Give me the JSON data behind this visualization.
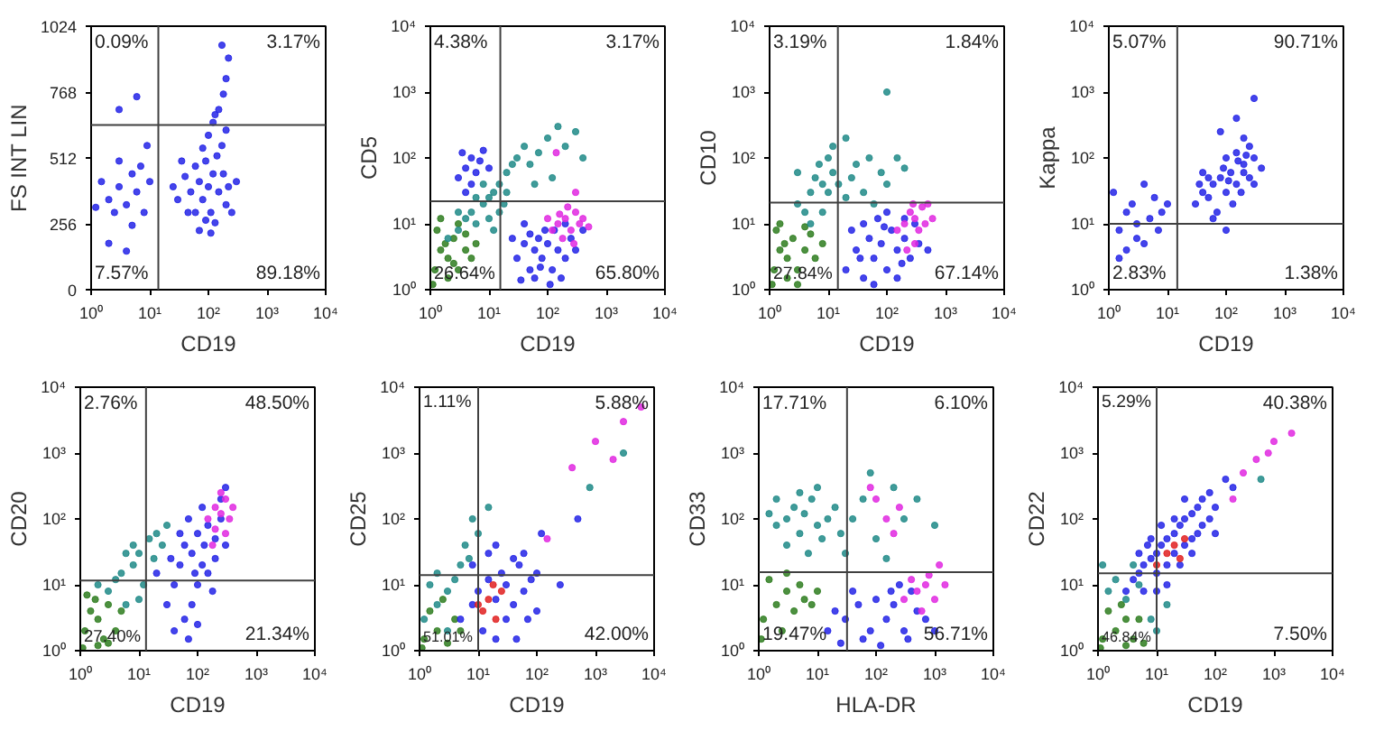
{
  "chart_data": [
    {
      "type": "scatter",
      "xlabel": "CD19",
      "ylabel": "FS INT LIN",
      "log": "x",
      "marker": "circle",
      "xlim": [
        1,
        10000
      ],
      "ylim": [
        0,
        1024
      ],
      "xticks": [
        {
          "value": 1,
          "label": "10⁰"
        },
        {
          "value": 10,
          "label": "10¹"
        },
        {
          "value": 100,
          "label": "10²"
        },
        {
          "value": 1000,
          "label": "10³"
        },
        {
          "value": 10000,
          "label": "10⁴"
        }
      ],
      "yticks": [
        0,
        256,
        512,
        768,
        1024
      ],
      "ref_lines": [
        {
          "axis": "x",
          "value": 14,
          "color": "#404040"
        },
        {
          "axis": "y",
          "value": 640,
          "color": "#404040"
        }
      ],
      "annotations": [
        "0.09%",
        "3.17%",
        "7.57%",
        "89.18%"
      ],
      "series": [
        {
          "color": "#2323e6",
          "x": [
            60,
            80,
            100,
            120,
            90,
            70,
            150,
            200,
            50,
            40,
            30,
            110,
            130,
            180,
            220,
            60,
            80,
            140,
            250,
            90,
            45,
            35,
            170,
            100,
            200,
            120,
            150,
            180,
            200,
            220,
            170,
            130,
            25,
            300,
            70,
            110,
            2,
            3,
            4,
            5,
            1.5,
            2.5,
            6,
            8,
            3,
            7,
            1.2,
            10,
            5,
            2,
            4,
            9,
            3,
            6
          ],
          "values": [
            300,
            350,
            400,
            450,
            500,
            420,
            380,
            330,
            380,
            440,
            350,
            300,
            260,
            450,
            400,
            480,
            550,
            520,
            300,
            270,
            300,
            500,
            560,
            600,
            620,
            650,
            700,
            760,
            820,
            900,
            950,
            680,
            400,
            420,
            230,
            220,
            350,
            400,
            330,
            450,
            420,
            300,
            380,
            300,
            500,
            480,
            320,
            420,
            250,
            180,
            150,
            560,
            700,
            750
          ]
        }
      ]
    },
    {
      "type": "scatter",
      "xlabel": "CD19",
      "ylabel": "CD5",
      "log": "xy",
      "marker": "circle",
      "xlim": [
        1,
        10000
      ],
      "ylim": [
        1,
        10000
      ],
      "xticks": [
        {
          "value": 1,
          "label": "10⁰"
        },
        {
          "value": 10,
          "label": "10¹"
        },
        {
          "value": 100,
          "label": "10²"
        },
        {
          "value": 1000,
          "label": "10³"
        },
        {
          "value": 10000,
          "label": "10⁴"
        }
      ],
      "yticks": [
        {
          "value": 1,
          "label": "10⁰"
        },
        {
          "value": 10,
          "label": "10¹"
        },
        {
          "value": 100,
          "label": "10²"
        },
        {
          "value": 1000,
          "label": "10³"
        },
        {
          "value": 10000,
          "label": "10⁴"
        }
      ],
      "ref_lines": [
        {
          "axis": "x",
          "value": 15.6,
          "color": "#404040"
        },
        {
          "axis": "y",
          "value": 22,
          "color": "#404040"
        }
      ],
      "annotations": [
        "4.38%",
        "3.17%",
        "26.64%",
        "65.80%"
      ],
      "series": [
        {
          "color": "#2e7d1e",
          "x": [
            1.2,
            1.5,
            2,
            2.5,
            3,
            1.3,
            4,
            2,
            3,
            1.8,
            5,
            1.1,
            2.5,
            4,
            1.5,
            6
          ],
          "values": [
            2,
            4,
            3,
            6,
            2,
            8,
            4,
            1.5,
            10,
            5,
            3,
            1.2,
            2.5,
            7,
            12,
            5
          ]
        },
        {
          "color": "#1f8a87",
          "x": [
            3,
            4,
            5,
            6,
            8,
            10,
            12,
            15,
            20,
            25,
            8,
            6,
            10,
            15,
            20,
            30,
            40,
            50,
            70,
            100,
            150,
            200,
            300,
            400,
            120,
            60,
            2,
            3,
            12,
            18
          ],
          "values": [
            8,
            12,
            15,
            10,
            20,
            25,
            30,
            40,
            60,
            80,
            40,
            25,
            12,
            15,
            30,
            100,
            150,
            80,
            120,
            200,
            300,
            150,
            250,
            100,
            50,
            40,
            6,
            15,
            8,
            20
          ]
        },
        {
          "color": "#2323e6",
          "x": [
            30,
            40,
            50,
            60,
            70,
            80,
            100,
            120,
            150,
            200,
            250,
            60,
            90,
            40,
            130,
            170,
            300,
            400,
            25,
            110,
            75,
            50,
            200,
            35,
            3,
            4,
            5,
            6,
            7,
            5,
            8,
            3.5,
            10,
            4
          ],
          "values": [
            3,
            5,
            2,
            4,
            6,
            3,
            5,
            2,
            4,
            3,
            6,
            1.5,
            8,
            10,
            8,
            1.5,
            4,
            8,
            6,
            1.2,
            2.2,
            7,
            10,
            1.4,
            50,
            70,
            100,
            60,
            90,
            40,
            130,
            120,
            70,
            30
          ]
        },
        {
          "color": "#e028e0",
          "x": [
            120,
            150,
            200,
            250,
            300,
            350,
            180,
            220,
            400,
            280,
            160,
            500,
            100,
            140,
            300
          ],
          "values": [
            8,
            10,
            12,
            8,
            15,
            10,
            6,
            18,
            12,
            5,
            14,
            9,
            12,
            120,
            30
          ]
        }
      ]
    },
    {
      "type": "scatter",
      "xlabel": "CD19",
      "ylabel": "CD10",
      "log": "xy",
      "marker": "circle",
      "xlim": [
        1,
        10000
      ],
      "ylim": [
        1,
        10000
      ],
      "xticks": [
        {
          "value": 1,
          "label": "10⁰"
        },
        {
          "value": 10,
          "label": "10¹"
        },
        {
          "value": 100,
          "label": "10²"
        },
        {
          "value": 1000,
          "label": "10³"
        },
        {
          "value": 10000,
          "label": "10⁴"
        }
      ],
      "yticks": [
        {
          "value": 1,
          "label": "10⁰"
        },
        {
          "value": 10,
          "label": "10¹"
        },
        {
          "value": 100,
          "label": "10²"
        },
        {
          "value": 1000,
          "label": "10³"
        },
        {
          "value": 10000,
          "label": "10⁴"
        }
      ],
      "ref_lines": [
        {
          "axis": "x",
          "value": 14.6,
          "color": "#404040"
        },
        {
          "axis": "y",
          "value": 21,
          "color": "#404040"
        }
      ],
      "annotations": [
        "3.19%",
        "1.84%",
        "27.84%",
        "67.14%"
      ],
      "series": [
        {
          "color": "#2e7d1e",
          "x": [
            1.2,
            1.5,
            2,
            2.5,
            3,
            1.3,
            4,
            2,
            5,
            1.8,
            6,
            1.1,
            3,
            8,
            1.5,
            4
          ],
          "values": [
            2,
            4,
            3,
            6,
            2,
            8,
            4,
            1.5,
            7,
            5,
            3,
            1.2,
            1.2,
            5,
            10,
            9
          ]
        },
        {
          "color": "#1f8a87",
          "x": [
            3,
            5,
            6,
            8,
            10,
            7,
            10,
            12,
            15,
            4,
            20,
            25,
            30,
            50,
            80,
            100,
            150,
            200,
            5,
            8,
            12,
            3,
            40,
            60,
            20,
            100
          ],
          "values": [
            20,
            30,
            50,
            40,
            30,
            80,
            100,
            60,
            40,
            15,
            25,
            50,
            80,
            100,
            60,
            40,
            100,
            70,
            10,
            15,
            150,
            60,
            30,
            20,
            200,
            1000
          ]
        },
        {
          "color": "#2323e6",
          "x": [
            20,
            30,
            40,
            50,
            60,
            80,
            100,
            120,
            150,
            200,
            250,
            300,
            40,
            70,
            100,
            150,
            200,
            25,
            60,
            90,
            350,
            500,
            180,
            35
          ],
          "values": [
            2,
            4,
            1.5,
            6,
            3,
            5,
            2,
            8,
            4,
            6,
            3,
            10,
            10,
            12,
            15,
            1.5,
            12,
            8,
            1.2,
            9,
            5,
            4,
            2.5,
            3
          ]
        },
        {
          "color": "#e028e0",
          "x": [
            150,
            200,
            250,
            300,
            350,
            400,
            450,
            300,
            500,
            220,
            600,
            280
          ],
          "values": [
            8,
            10,
            15,
            12,
            8,
            18,
            10,
            5,
            20,
            4,
            12,
            20
          ]
        }
      ]
    },
    {
      "type": "scatter",
      "xlabel": "CD19",
      "ylabel": "Kappa",
      "log": "xy",
      "marker": "circle",
      "xlim": [
        1,
        10000
      ],
      "ylim": [
        1,
        10000
      ],
      "xticks": [
        {
          "value": 1,
          "label": "10⁰"
        },
        {
          "value": 10,
          "label": "10¹"
        },
        {
          "value": 100,
          "label": "10²"
        },
        {
          "value": 1000,
          "label": "10³"
        },
        {
          "value": 10000,
          "label": "10⁴"
        }
      ],
      "yticks": [
        {
          "value": 1,
          "label": "10⁰"
        },
        {
          "value": 10,
          "label": "10¹"
        },
        {
          "value": 100,
          "label": "10²"
        },
        {
          "value": 1000,
          "label": "10³"
        },
        {
          "value": 10000,
          "label": "10⁴"
        }
      ],
      "ref_lines": [
        {
          "axis": "x",
          "value": 14.7,
          "color": "#404040"
        },
        {
          "axis": "y",
          "value": 10,
          "color": "#404040"
        }
      ],
      "annotations": [
        "5.07%",
        "90.71%",
        "2.83%",
        "1.38%"
      ],
      "series": [
        {
          "color": "#2323e6",
          "x": [
            30,
            40,
            50,
            60,
            80,
            100,
            120,
            150,
            200,
            250,
            300,
            100,
            150,
            200,
            70,
            50,
            90,
            130,
            180,
            250,
            40,
            300,
            60,
            110,
            160,
            220,
            35,
            400,
            100,
            200,
            300,
            150,
            80,
            1.5,
            2,
            3,
            4,
            5,
            2.5,
            1.2,
            3,
            6,
            8,
            2,
            4,
            10,
            7,
            1.5
          ],
          "values": [
            20,
            30,
            25,
            40,
            50,
            30,
            60,
            40,
            80,
            50,
            100,
            100,
            120,
            60,
            15,
            50,
            70,
            20,
            30,
            150,
            60,
            40,
            12,
            45,
            90,
            110,
            40,
            70,
            8,
            200,
            800,
            400,
            250,
            8,
            15,
            10,
            5,
            12,
            20,
            30,
            6,
            25,
            15,
            4,
            40,
            20,
            8,
            3
          ]
        }
      ]
    },
    {
      "type": "scatter",
      "xlabel": "CD19",
      "ylabel": "CD20",
      "log": "xy",
      "marker": "circle",
      "xlim": [
        1,
        10000
      ],
      "ylim": [
        1,
        10000
      ],
      "xticks": [
        {
          "value": 1,
          "label": "10⁰"
        },
        {
          "value": 10,
          "label": "10¹"
        },
        {
          "value": 100,
          "label": "10²"
        },
        {
          "value": 1000,
          "label": "10³"
        },
        {
          "value": 10000,
          "label": "10⁴"
        }
      ],
      "yticks": [
        {
          "value": 1,
          "label": "10⁰"
        },
        {
          "value": 10,
          "label": "10¹"
        },
        {
          "value": 100,
          "label": "10²"
        },
        {
          "value": 1000,
          "label": "10³"
        },
        {
          "value": 10000,
          "label": "10⁴"
        }
      ],
      "ref_lines": [
        {
          "axis": "x",
          "value": 13.2,
          "color": "#404040"
        },
        {
          "axis": "y",
          "value": 11.6,
          "color": "#404040"
        }
      ],
      "annotations": [
        "2.76%",
        "48.50%",
        "27.40%",
        "21.34%"
      ],
      "series": [
        {
          "color": "#2e7d1e",
          "x": [
            1.2,
            1.5,
            2,
            2.5,
            3,
            1.3,
            4,
            2,
            5,
            1.8,
            1.1,
            3
          ],
          "values": [
            2,
            4,
            3,
            1.5,
            5,
            7,
            2,
            1.2,
            4,
            6,
            1.1,
            1.3
          ]
        },
        {
          "color": "#1f8a87",
          "x": [
            3,
            5,
            8,
            10,
            15,
            20,
            6,
            12,
            25,
            4,
            8,
            30,
            10,
            2,
            18,
            6
          ],
          "values": [
            8,
            15,
            20,
            30,
            50,
            60,
            5,
            10,
            40,
            12,
            40,
            80,
            6,
            10,
            25,
            30
          ]
        },
        {
          "color": "#2323e6",
          "x": [
            30,
            40,
            50,
            60,
            80,
            100,
            120,
            150,
            200,
            250,
            100,
            80,
            60,
            150,
            200,
            50,
            70,
            120,
            40,
            100,
            180,
            300,
            250,
            90,
            130,
            35,
            300,
            20,
            70
          ],
          "values": [
            5,
            10,
            20,
            40,
            30,
            60,
            20,
            80,
            50,
            100,
            10,
            5,
            3,
            15,
            25,
            60,
            100,
            150,
            2,
            2.5,
            8,
            40,
            200,
            15,
            40,
            25,
            300,
            15,
            1.5
          ]
        },
        {
          "color": "#e028e0",
          "x": [
            150,
            200,
            250,
            300,
            200,
            350,
            180,
            300,
            400,
            250
          ],
          "values": [
            100,
            150,
            120,
            200,
            70,
            100,
            40,
            60,
            150,
            250
          ]
        }
      ]
    },
    {
      "type": "scatter",
      "xlabel": "CD19",
      "ylabel": "CD25",
      "log": "xy",
      "marker": "circle",
      "xlim": [
        1,
        10000
      ],
      "ylim": [
        1,
        10000
      ],
      "xticks": [
        {
          "value": 1,
          "label": "10⁰"
        },
        {
          "value": 10,
          "label": "10¹"
        },
        {
          "value": 100,
          "label": "10²"
        },
        {
          "value": 1000,
          "label": "10³"
        },
        {
          "value": 10000,
          "label": "10⁴"
        }
      ],
      "yticks": [
        {
          "value": 1,
          "label": "10⁰"
        },
        {
          "value": 10,
          "label": "10¹"
        },
        {
          "value": 100,
          "label": "10²"
        },
        {
          "value": 1000,
          "label": "10³"
        },
        {
          "value": 10000,
          "label": "10⁴"
        }
      ],
      "ref_lines": [
        {
          "axis": "x",
          "value": 10,
          "color": "#404040"
        },
        {
          "axis": "y",
          "value": 14,
          "color": "#404040"
        }
      ],
      "annotations": [
        "1.11%",
        "5.88%",
        "51.01%",
        "42.00%"
      ],
      "series": [
        {
          "color": "#1f8a87",
          "x": [
            1.2,
            2,
            3,
            4,
            5,
            2,
            6,
            8,
            10,
            3,
            1.5,
            7,
            15,
            800,
            3000
          ],
          "values": [
            3,
            5,
            8,
            12,
            20,
            15,
            40,
            100,
            60,
            2,
            10,
            25,
            150,
            300,
            1000
          ]
        },
        {
          "color": "#2e7d1e",
          "x": [
            1.2,
            2,
            3,
            1.5,
            4,
            2.5,
            1.1,
            5
          ],
          "values": [
            1.5,
            2,
            1.3,
            4,
            3,
            6,
            1.1,
            2
          ]
        },
        {
          "color": "#2323e6",
          "x": [
            5,
            8,
            10,
            15,
            20,
            25,
            30,
            40,
            50,
            60,
            80,
            100,
            12,
            20,
            30,
            40,
            15,
            8,
            60,
            45,
            70,
            100,
            120,
            250,
            500,
            20
          ],
          "values": [
            3,
            5,
            8,
            12,
            6,
            15,
            10,
            5,
            20,
            8,
            12,
            4,
            2,
            1.5,
            3,
            25,
            30,
            20,
            30,
            1.5,
            3,
            15,
            60,
            10,
            100,
            40
          ]
        },
        {
          "color": "#e028e0",
          "x": [
            1000,
            3000,
            6000,
            2000,
            400,
            150
          ],
          "values": [
            1500,
            3000,
            5000,
            800,
            600,
            50
          ]
        },
        {
          "color": "#e02020",
          "x": [
            12,
            15,
            20,
            25,
            18,
            10
          ],
          "values": [
            4,
            6,
            3,
            8,
            10,
            5
          ]
        }
      ]
    },
    {
      "type": "scatter",
      "xlabel": "HLA-DR",
      "ylabel": "CD33",
      "log": "xy",
      "marker": "circle",
      "xlim": [
        1,
        10000
      ],
      "ylim": [
        1,
        10000
      ],
      "xticks": [
        {
          "value": 1,
          "label": "10⁰"
        },
        {
          "value": 10,
          "label": "10¹"
        },
        {
          "value": 100,
          "label": "10²"
        },
        {
          "value": 1000,
          "label": "10³"
        },
        {
          "value": 10000,
          "label": "10⁴"
        }
      ],
      "yticks": [
        {
          "value": 1,
          "label": "10⁰"
        },
        {
          "value": 10,
          "label": "10¹"
        },
        {
          "value": 100,
          "label": "10²"
        },
        {
          "value": 1000,
          "label": "10³"
        },
        {
          "value": 10000,
          "label": "10⁴"
        }
      ],
      "ref_lines": [
        {
          "axis": "x",
          "value": 32,
          "color": "#404040"
        },
        {
          "axis": "y",
          "value": 15.5,
          "color": "#404040"
        }
      ],
      "annotations": [
        "17.71%",
        "6.10%",
        "19.47%",
        "56.71%"
      ],
      "series": [
        {
          "color": "#1f8a87",
          "x": [
            2,
            3,
            4,
            5,
            6,
            8,
            10,
            12,
            15,
            3,
            5,
            20,
            7,
            10,
            2,
            25,
            1.5,
            40,
            60,
            100,
            200,
            300,
            500,
            1000,
            150,
            80,
            30
          ],
          "values": [
            80,
            100,
            150,
            60,
            120,
            200,
            80,
            50,
            100,
            40,
            250,
            150,
            30,
            300,
            200,
            60,
            120,
            100,
            200,
            50,
            300,
            100,
            200,
            80,
            25,
            500,
            30
          ]
        },
        {
          "color": "#2e7d1e",
          "x": [
            1.2,
            2,
            3,
            4,
            5,
            6,
            1.5,
            2.5,
            8,
            1.1,
            3,
            10
          ],
          "values": [
            3,
            5,
            8,
            4,
            10,
            6,
            12,
            2,
            5,
            1.5,
            15,
            8
          ]
        },
        {
          "color": "#2323e6",
          "x": [
            15,
            20,
            30,
            50,
            80,
            100,
            150,
            200,
            300,
            400,
            500,
            60,
            40,
            250,
            120,
            700,
            1000,
            25,
            180,
            350
          ],
          "values": [
            2,
            4,
            3,
            5,
            2,
            6,
            3,
            5,
            2,
            8,
            4,
            1.5,
            8,
            10,
            1.2,
            3,
            2,
            1.3,
            8,
            1.5
          ]
        },
        {
          "color": "#e028e0",
          "x": [
            300,
            500,
            700,
            1000,
            800,
            600,
            1500,
            400,
            100,
            150,
            200,
            80,
            250,
            1200
          ],
          "values": [
            6,
            8,
            10,
            6,
            14,
            4,
            10,
            12,
            200,
            100,
            60,
            300,
            150,
            20
          ]
        }
      ]
    },
    {
      "type": "scatter",
      "xlabel": "CD19",
      "ylabel": "CD22",
      "log": "xy",
      "marker": "circle",
      "xlim": [
        1,
        10000
      ],
      "ylim": [
        1,
        10000
      ],
      "xticks": [
        {
          "value": 1,
          "label": "10⁰"
        },
        {
          "value": 10,
          "label": "10¹"
        },
        {
          "value": 100,
          "label": "10²"
        },
        {
          "value": 1000,
          "label": "10³"
        },
        {
          "value": 10000,
          "label": "10⁴"
        }
      ],
      "yticks": [
        {
          "value": 1,
          "label": "10⁰"
        },
        {
          "value": 10,
          "label": "10¹"
        },
        {
          "value": 100,
          "label": "10²"
        },
        {
          "value": 1000,
          "label": "10³"
        },
        {
          "value": 10000,
          "label": "10⁴"
        }
      ],
      "ref_lines": [
        {
          "axis": "x",
          "value": 10,
          "color": "#404040"
        },
        {
          "axis": "y",
          "value": 15,
          "color": "#404040"
        }
      ],
      "annotations": [
        "5.29%",
        "40.38%",
        "46.84%",
        "7.50%"
      ],
      "series": [
        {
          "color": "#2e7d1e",
          "x": [
            1.2,
            2,
            3,
            1.5,
            4,
            2.5,
            1.1,
            5,
            6,
            3
          ],
          "values": [
            1.5,
            2,
            3,
            4,
            1.5,
            5,
            1.1,
            3,
            1.3,
            1.2
          ]
        },
        {
          "color": "#1f8a87",
          "x": [
            1.5,
            2,
            3,
            4,
            5,
            8,
            1.2,
            10,
            15,
            600
          ],
          "values": [
            8,
            12,
            6,
            20,
            10,
            3,
            20,
            2,
            5,
            400
          ]
        },
        {
          "color": "#2323e6",
          "x": [
            3,
            4,
            5,
            6,
            8,
            10,
            12,
            15,
            20,
            25,
            30,
            40,
            50,
            60,
            80,
            10,
            15,
            20,
            30,
            40,
            50,
            60,
            80,
            100,
            5,
            8,
            12,
            20,
            30,
            6,
            10,
            15,
            25,
            100,
            7,
            200,
            150,
            40
          ],
          "values": [
            8,
            12,
            15,
            20,
            25,
            30,
            40,
            50,
            60,
            80,
            100,
            120,
            150,
            200,
            250,
            15,
            20,
            30,
            40,
            50,
            60,
            80,
            100,
            150,
            30,
            50,
            80,
            100,
            200,
            8,
            8,
            10,
            20,
            60,
            40,
            300,
            400,
            30
          ]
        },
        {
          "color": "#e02020",
          "x": [
            15,
            20,
            30,
            25,
            10
          ],
          "values": [
            30,
            40,
            50,
            25,
            20
          ]
        },
        {
          "color": "#e028e0",
          "x": [
            300,
            500,
            1000,
            2000,
            200,
            800
          ],
          "values": [
            500,
            800,
            1500,
            2000,
            200,
            1000
          ]
        }
      ]
    }
  ]
}
